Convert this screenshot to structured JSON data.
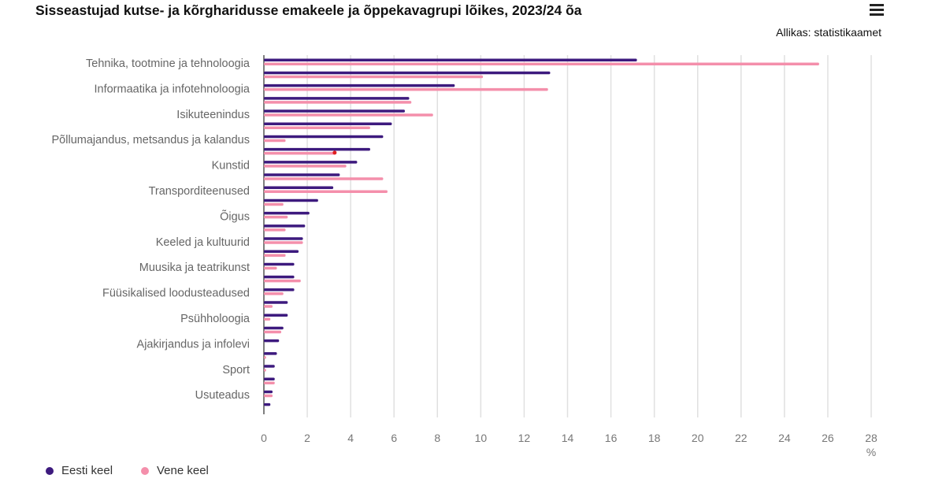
{
  "header": {
    "title": "Sisseastujad kutse- ja kõrgharidusse emakeele ja õppekavagrupi lõikes, 2023/24 õa",
    "source": "Allikas: statistikaamet",
    "menu_icon": "hamburger-icon"
  },
  "colors": {
    "eesti": "#3d1a7e",
    "vene": "#f48fab",
    "grid": "#e0e0e0"
  },
  "chart_data": {
    "type": "bar",
    "orientation": "horizontal",
    "title": "Sisseastujad kutse- ja kõrgharidusse emakeele ja õppekavagrupi lõikes, 2023/24 õa",
    "xlabel": "%",
    "xlim": [
      0,
      28
    ],
    "xticks": [
      "0",
      "2",
      "4",
      "6",
      "8",
      "10",
      "12",
      "14",
      "16",
      "18",
      "20",
      "22",
      "24",
      "26",
      "28"
    ],
    "categories": [
      "Tehnika, tootmine ja tehnoloogia",
      "",
      "Informaatika ja infotehnoloogia",
      "",
      "Isikuteenindus",
      "",
      "Põllumajandus, metsandus ja kalandus",
      "",
      "Kunstid",
      "",
      "Transporditeenused",
      "",
      "Õigus",
      "",
      "Keeled ja kultuurid",
      "",
      "Muusika ja teatrikunst",
      "",
      "Füüsikalised loodusteadused",
      "",
      "Psühholoogia",
      "",
      "Ajakirjandus ja infolevi",
      "",
      "Sport",
      "",
      "Usuteadus",
      ""
    ],
    "series": [
      {
        "name": "Eesti keel",
        "values": [
          17.2,
          13.2,
          8.8,
          6.7,
          6.5,
          5.9,
          5.5,
          4.9,
          4.3,
          3.5,
          3.2,
          2.5,
          2.1,
          1.9,
          1.8,
          1.6,
          1.4,
          1.4,
          1.4,
          1.1,
          1.1,
          0.9,
          0.7,
          0.6,
          0.5,
          0.5,
          0.4,
          0.3
        ]
      },
      {
        "name": "Vene keel",
        "values": [
          25.6,
          10.1,
          13.1,
          6.8,
          7.8,
          4.9,
          1.0,
          3.3,
          3.8,
          5.5,
          5.7,
          0.9,
          1.1,
          1.0,
          1.8,
          1.0,
          0.6,
          1.7,
          0.9,
          0.4,
          0.3,
          0.8,
          0,
          0.1,
          0.1,
          0.5,
          0.4,
          0
        ]
      }
    ],
    "legend": "bottom-left",
    "grid": true
  }
}
